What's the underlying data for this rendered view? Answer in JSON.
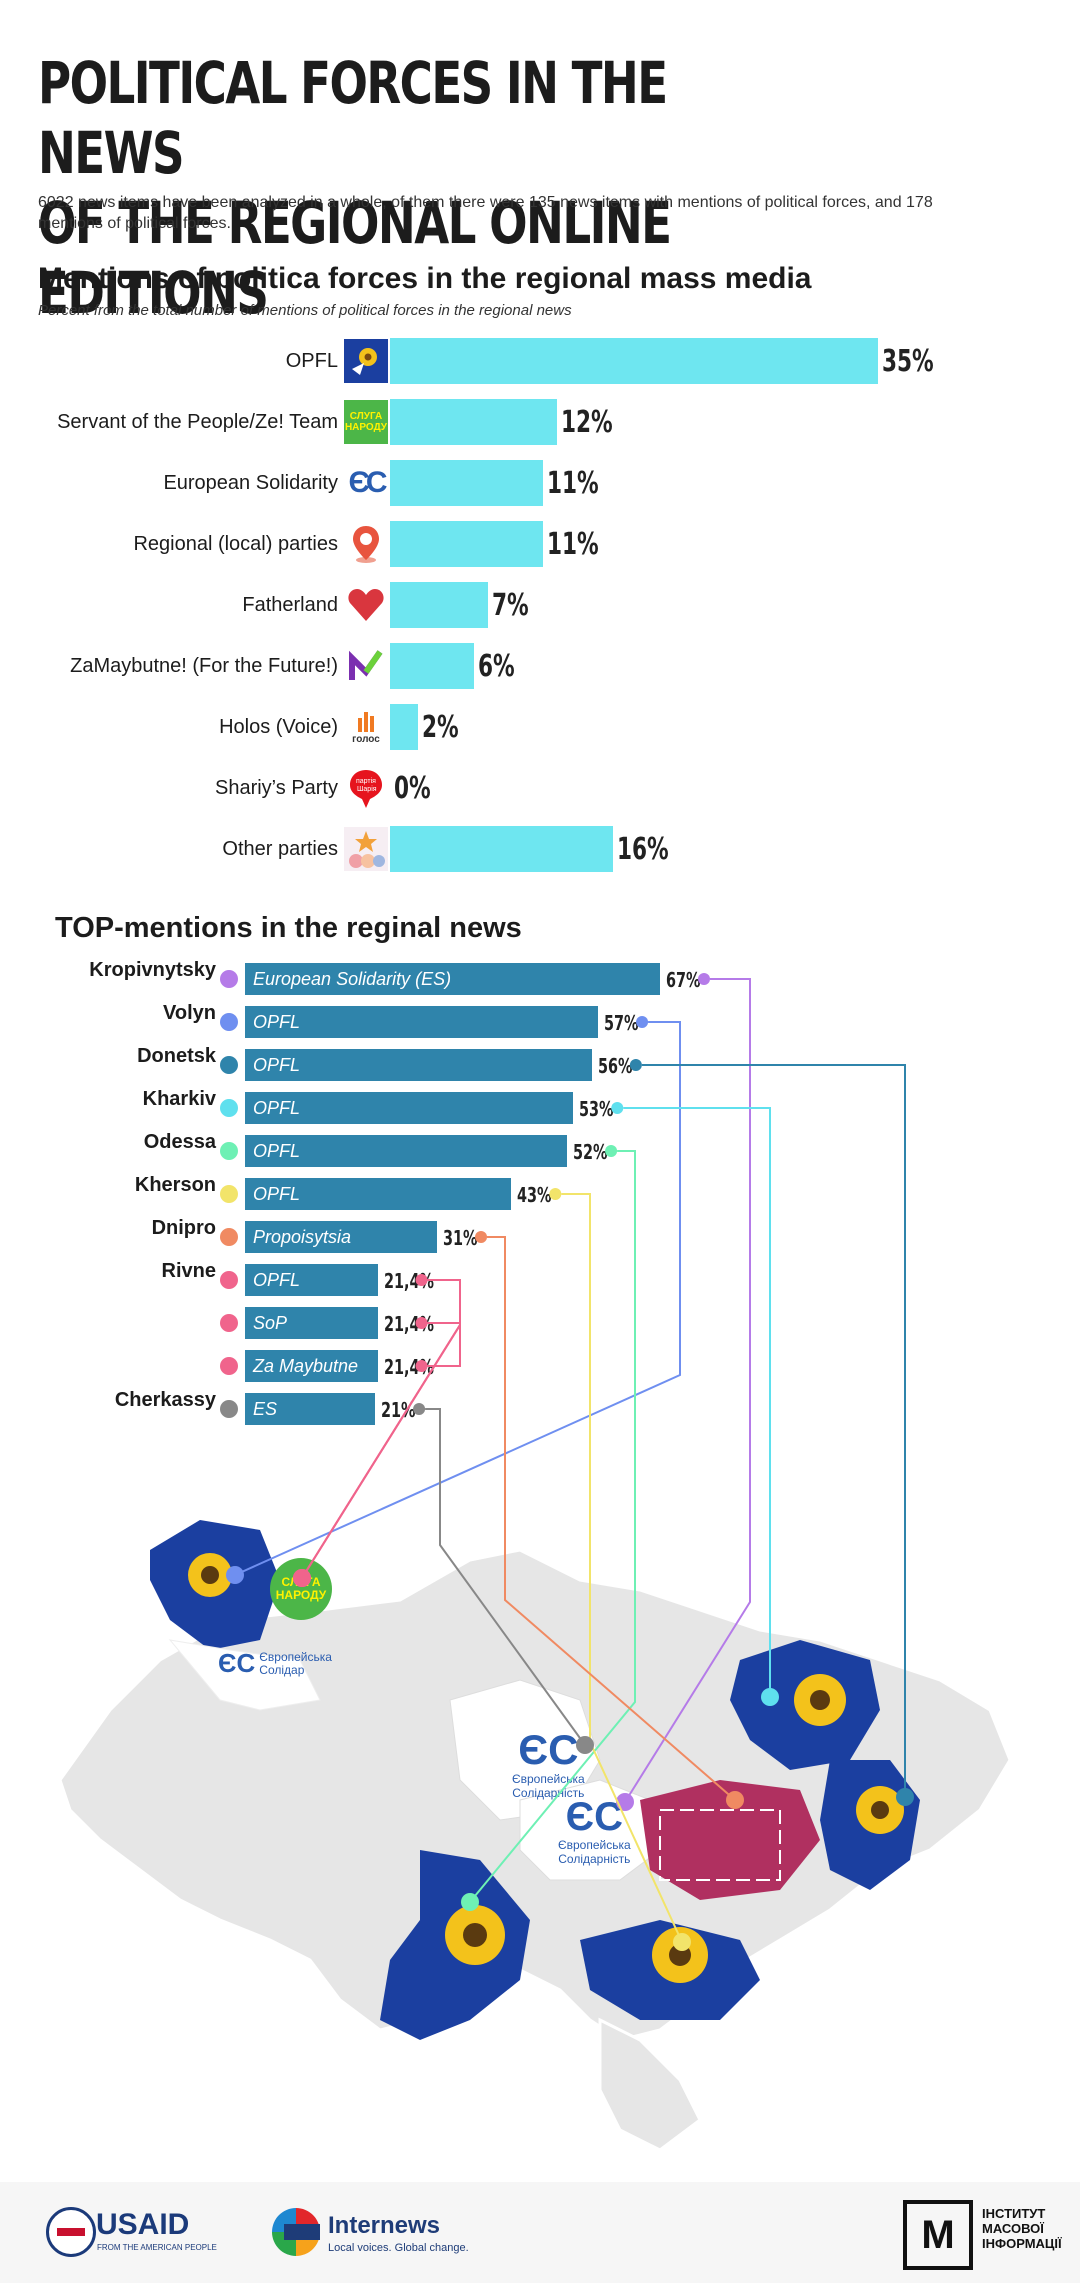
{
  "title_line1": "POLITICAL FORCES IN THE NEWS",
  "title_line2": "OF THE REGIONAL ONLINE EDITIONS",
  "intro": "6022 news items have been analyzed in a whole, of them there were 135 news items with mentions of political forces, and 178 mentions of political forces.",
  "chart1": {
    "heading": "Mentions of politica forces in the regional mass media",
    "subheading": "Percent from the total number of mentions of political forces in the regional news"
  },
  "chart_data": [
    {
      "type": "bar",
      "orientation": "horizontal",
      "title": "Mentions of politica forces in the regional mass media",
      "subtitle": "Percent from the total number of mentions of political forces in the regional news",
      "categories": [
        "OPFL",
        "Servant of the People/Ze! Team",
        "European Solidarity",
        "Regional (local) parties",
        "Fatherland",
        "ZaMaybutne! (For the Future!)",
        "Holos (Voice)",
        "Shariy’s Party",
        "Other parties"
      ],
      "values": [
        35,
        12,
        11,
        11,
        7,
        6,
        2,
        0,
        16
      ],
      "value_labels": [
        "35%",
        "12%",
        "11%",
        "11%",
        "7%",
        "6%",
        "2%",
        "0%",
        "16%"
      ],
      "bar_color": "#6ee6f0",
      "xlim": [
        0,
        35
      ]
    },
    {
      "type": "bar",
      "orientation": "horizontal",
      "title": "TOP-mentions in the reginal news",
      "rows": [
        {
          "region": "Kropivnytsky",
          "party": "European Solidarity (ES)",
          "value": 67,
          "label": "67%",
          "dot": "#b57be8"
        },
        {
          "region": "Volyn",
          "party": "OPFL",
          "value": 57,
          "label": "57%",
          "dot": "#6f8ff0"
        },
        {
          "region": "Donetsk",
          "party": "OPFL",
          "value": 56,
          "label": "56%",
          "dot": "#2f84ab"
        },
        {
          "region": "Kharkiv",
          "party": "OPFL",
          "value": 53,
          "label": "53%",
          "dot": "#5fe0ee"
        },
        {
          "region": "Odessa",
          "party": "OPFL",
          "value": 52,
          "label": "52%",
          "dot": "#6ef0b4"
        },
        {
          "region": "Kherson",
          "party": "OPFL",
          "value": 43,
          "label": "43%",
          "dot": "#f2e46a"
        },
        {
          "region": "Dnipro",
          "party": "Propoisytsia",
          "value": 31,
          "label": "31%",
          "dot": "#f08a62"
        },
        {
          "region": "Rivne",
          "party": "OPFL",
          "value": 21.4,
          "label": "21,4%",
          "dot": "#f0648c"
        },
        {
          "region": "",
          "party": "SoP",
          "value": 21.4,
          "label": "21,4%",
          "dot": "#f0648c"
        },
        {
          "region": "",
          "party": "Za Maybutne",
          "value": 21.4,
          "label": "21,4%",
          "dot": "#f0648c"
        },
        {
          "region": "Cherkassy",
          "party": "ES",
          "value": 21,
          "label": "21%",
          "dot": "#888888"
        }
      ],
      "bar_color": "#2f84ab",
      "xlim": [
        0,
        67
      ]
    }
  ],
  "chart2": {
    "heading": "TOP-mentions in the reginal news"
  },
  "map": {
    "es_logo_text_1": "Європейська",
    "es_logo_text_2": "Солідарність",
    "es_logo_text_short": "Солідар",
    "sluga_text_1": "СЛУГА",
    "sluga_text_2": "НАРОДУ"
  },
  "logos": {
    "sluga_1": "СЛУГА",
    "sluga_2": "НАРОДУ",
    "es": "ЄС",
    "holos": "голос",
    "shariy_1": "партія",
    "shariy_2": "Шарія"
  },
  "footer": {
    "usaid": "USAID",
    "usaid_sub": "FROM THE AMERICAN PEOPLE",
    "internews": "Internews",
    "internews_sub": "Local voices. Global change.",
    "imi_1": "ІНСТИТУТ",
    "imi_2": "МАСОВОЇ",
    "imi_3": "ІНФОРМАЦІЇ",
    "imi_letter": "М"
  }
}
